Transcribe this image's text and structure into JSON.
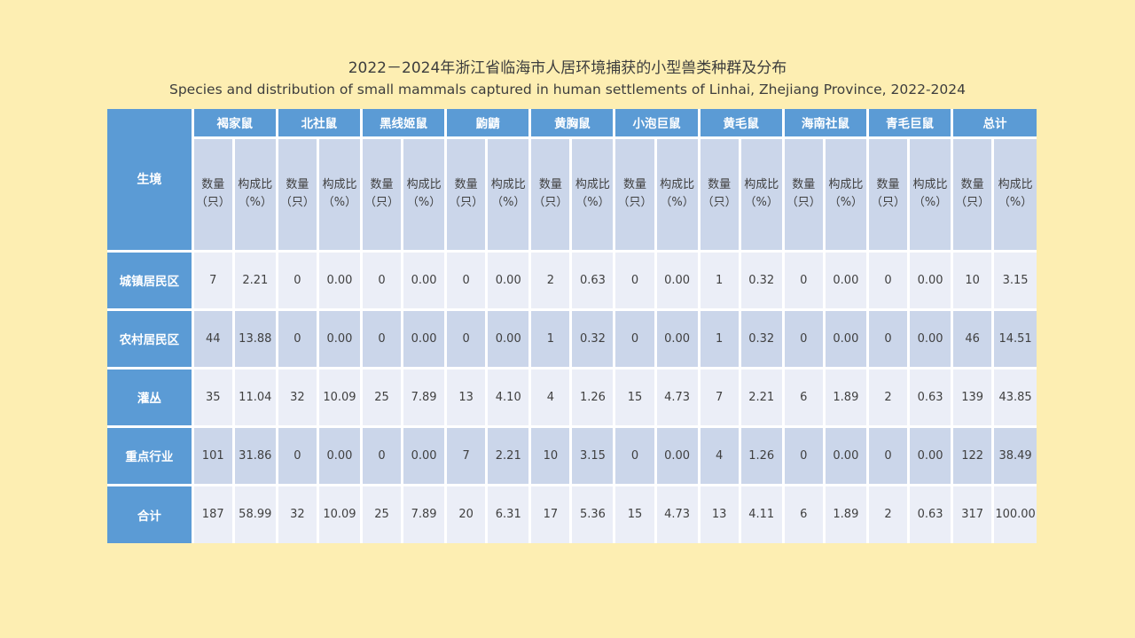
{
  "chart_data": {
    "type": "table",
    "title": "2022－2024年浙江省临海市人居环境捕获的小型兽类种群及分布",
    "subtitle": "Species and distribution of small mammals captured in human settlements of Linhai, Zhejiang Province, 2022-2024",
    "corner_header": "生境",
    "column_groups": [
      "褐家鼠",
      "北社鼠",
      "黑线姬鼠",
      "鼩鼱",
      "黄胸鼠",
      "小泡巨鼠",
      "黄毛鼠",
      "海南社鼠",
      "青毛巨鼠",
      "总计"
    ],
    "sub_columns": [
      {
        "line1": "数量",
        "line2": "（只）"
      },
      {
        "line1": "构成比",
        "line2": "（%）"
      }
    ],
    "rows": [
      {
        "label": "城镇居民区",
        "values": [
          "7",
          "2.21",
          "0",
          "0.00",
          "0",
          "0.00",
          "0",
          "0.00",
          "2",
          "0.63",
          "0",
          "0.00",
          "1",
          "0.32",
          "0",
          "0.00",
          "0",
          "0.00",
          "10",
          "3.15"
        ]
      },
      {
        "label": "农村居民区",
        "values": [
          "44",
          "13.88",
          "0",
          "0.00",
          "0",
          "0.00",
          "0",
          "0.00",
          "1",
          "0.32",
          "0",
          "0.00",
          "1",
          "0.32",
          "0",
          "0.00",
          "0",
          "0.00",
          "46",
          "14.51"
        ]
      },
      {
        "label": "灌丛",
        "values": [
          "35",
          "11.04",
          "32",
          "10.09",
          "25",
          "7.89",
          "13",
          "4.10",
          "4",
          "1.26",
          "15",
          "4.73",
          "7",
          "2.21",
          "6",
          "1.89",
          "2",
          "0.63",
          "139",
          "43.85"
        ]
      },
      {
        "label": "重点行业",
        "values": [
          "101",
          "31.86",
          "0",
          "0.00",
          "0",
          "0.00",
          "7",
          "2.21",
          "10",
          "3.15",
          "0",
          "0.00",
          "4",
          "1.26",
          "0",
          "0.00",
          "0",
          "0.00",
          "122",
          "38.49"
        ]
      },
      {
        "label": "合计",
        "values": [
          "187",
          "58.99",
          "32",
          "10.09",
          "25",
          "7.89",
          "20",
          "6.31",
          "17",
          "5.36",
          "15",
          "4.73",
          "13",
          "4.11",
          "6",
          "1.89",
          "2",
          "0.63",
          "317",
          "100.00"
        ]
      }
    ]
  },
  "colors": {
    "background": "#FDEEB2",
    "header_blue": "#5B9BD5",
    "band_blue": "#CBD6EA",
    "band_light": "#EBEEF7",
    "header_text": "#FFFFFF",
    "body_text": "#404040",
    "grid_white": "#FFFFFF"
  }
}
